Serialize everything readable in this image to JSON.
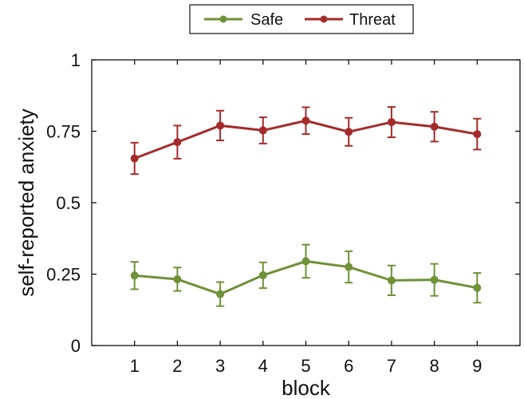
{
  "chart_data": {
    "type": "line",
    "title": "",
    "xlabel": "block",
    "ylabel": "self-reported anxiety",
    "x": [
      1,
      2,
      3,
      4,
      5,
      6,
      7,
      8,
      9
    ],
    "xlim": [
      0,
      10
    ],
    "ylim": [
      0,
      1
    ],
    "yticks": [
      0,
      0.25,
      0.5,
      0.75,
      1
    ],
    "ytick_labels": [
      "0",
      "0.25",
      "0.5",
      "0.75",
      "1"
    ],
    "xtick_labels": [
      "1",
      "2",
      "3",
      "4",
      "5",
      "6",
      "7",
      "8",
      "9"
    ],
    "grid": false,
    "legend_position": "top-center",
    "series": [
      {
        "name": "Safe",
        "color": "#6f9137",
        "values": [
          0.245,
          0.232,
          0.18,
          0.246,
          0.295,
          0.275,
          0.228,
          0.23,
          0.202
        ],
        "errors": [
          0.048,
          0.041,
          0.042,
          0.045,
          0.058,
          0.055,
          0.052,
          0.056,
          0.052
        ]
      },
      {
        "name": "Threat",
        "color": "#a42b2b",
        "values": [
          0.655,
          0.712,
          0.77,
          0.753,
          0.787,
          0.748,
          0.782,
          0.766,
          0.74
        ],
        "errors": [
          0.055,
          0.058,
          0.052,
          0.046,
          0.047,
          0.049,
          0.053,
          0.052,
          0.054
        ]
      }
    ]
  }
}
